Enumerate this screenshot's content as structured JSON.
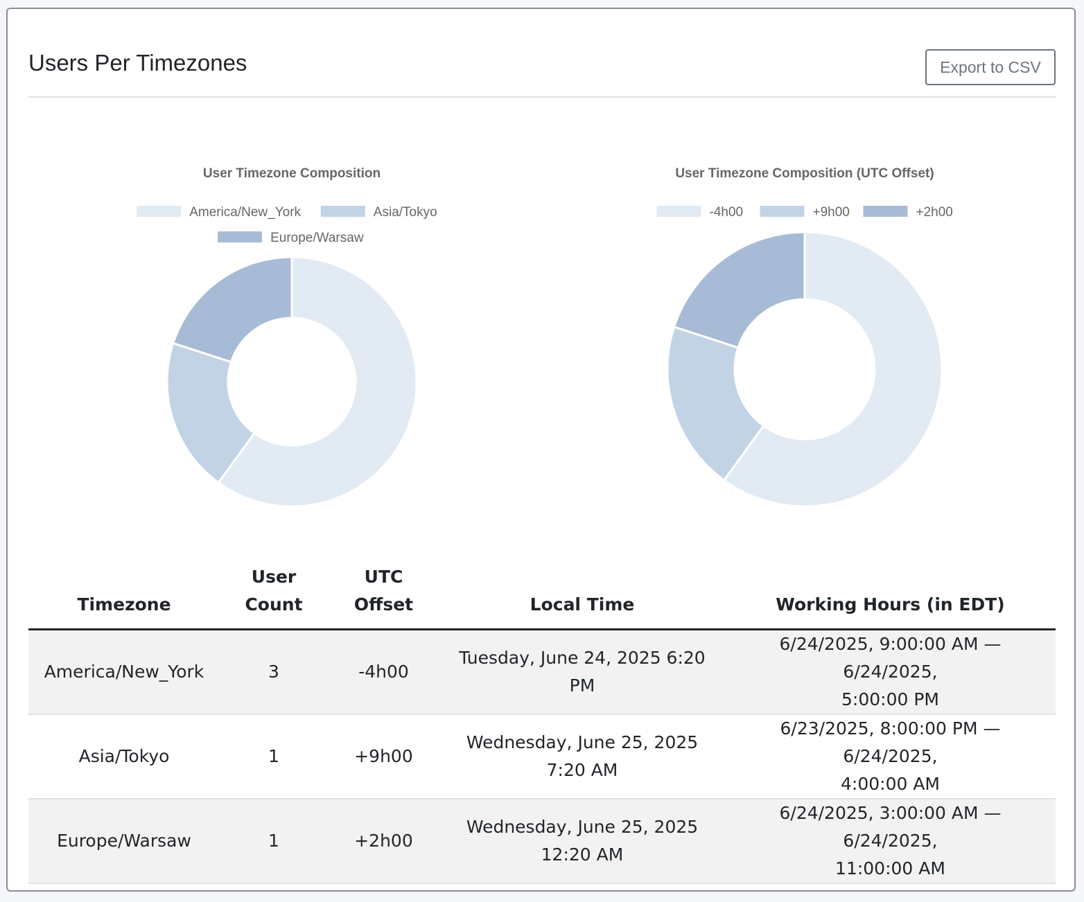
{
  "header": {
    "title": "Users Per Timezones",
    "export_label": "Export to CSV"
  },
  "colors": {
    "slice_1": "#e2eaf4",
    "slice_2": "#c3d3e6",
    "slice_3": "#a7bbd7"
  },
  "chart_data": [
    {
      "type": "pie",
      "title": "User Timezone Composition",
      "categories": [
        "America/New_York",
        "Asia/Tokyo",
        "Europe/Warsaw"
      ],
      "values": [
        3,
        1,
        1
      ],
      "legend": "top"
    },
    {
      "type": "pie",
      "title": "User Timezone Composition (UTC Offset)",
      "categories": [
        "-4h00",
        "+9h00",
        "+2h00"
      ],
      "values": [
        3,
        1,
        1
      ],
      "legend": "top"
    }
  ],
  "table": {
    "headers": {
      "timezone": "Timezone",
      "user_count_1": "User",
      "user_count_2": "Count",
      "utc_offset_1": "UTC",
      "utc_offset_2": "Offset",
      "local_time": "Local Time",
      "working_hours": "Working Hours (in EDT)"
    },
    "rows": [
      {
        "timezone": "America/New_York",
        "user_count": "3",
        "utc_offset": "-4h00",
        "local_time_1": "Tuesday, June 24, 2025 6:20",
        "local_time_2": "PM",
        "working_hours_1": "6/24/2025, 9:00:00 AM — 6/24/2025,",
        "working_hours_2": "5:00:00 PM"
      },
      {
        "timezone": "Asia/Tokyo",
        "user_count": "1",
        "utc_offset": "+9h00",
        "local_time_1": "Wednesday, June 25, 2025",
        "local_time_2": "7:20 AM",
        "working_hours_1": "6/23/2025, 8:00:00 PM — 6/24/2025,",
        "working_hours_2": "4:00:00 AM"
      },
      {
        "timezone": "Europe/Warsaw",
        "user_count": "1",
        "utc_offset": "+2h00",
        "local_time_1": "Wednesday, June 25, 2025",
        "local_time_2": "12:20 AM",
        "working_hours_1": "6/24/2025, 3:00:00 AM — 6/24/2025,",
        "working_hours_2": "11:00:00 AM"
      }
    ]
  }
}
